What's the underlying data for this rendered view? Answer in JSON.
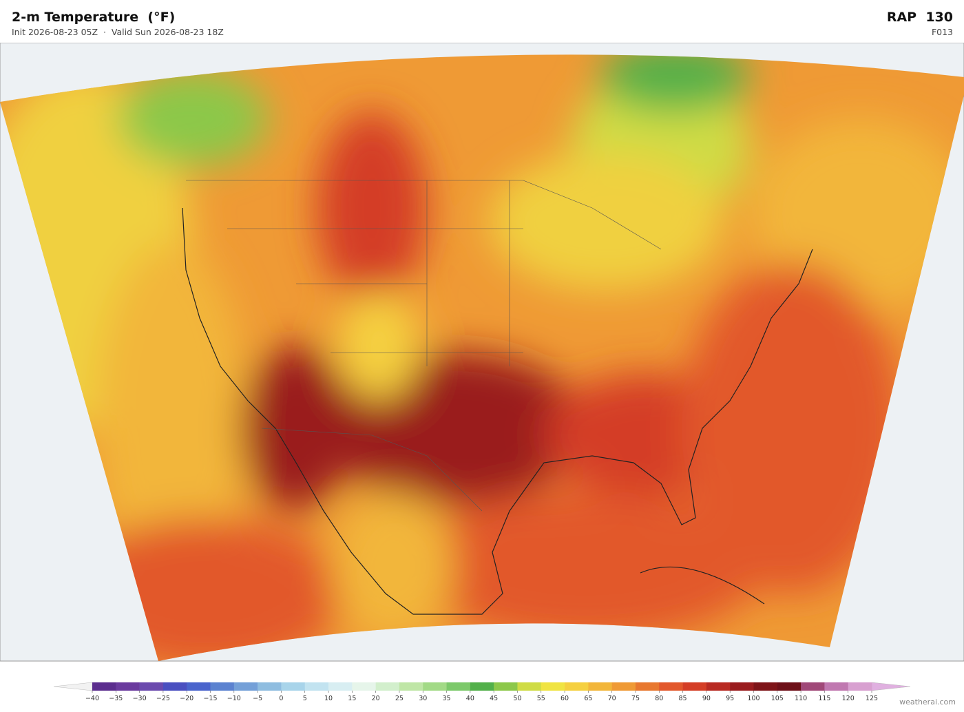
{
  "header": {
    "title": "2-m Temperature  (°F)",
    "subtitle": "Init 2026-08-23 05Z  ·  Valid Sun 2026-08-23 18Z",
    "model": "RAP  130",
    "forecast_hour": "F013"
  },
  "colorbar": {
    "ticks": [
      {
        "value": -40,
        "label": "−40"
      },
      {
        "value": -35,
        "label": "−35"
      },
      {
        "value": -30,
        "label": "−30"
      },
      {
        "value": -25,
        "label": "−25"
      },
      {
        "value": -20,
        "label": "−20"
      },
      {
        "value": -15,
        "label": "−15"
      },
      {
        "value": -10,
        "label": "−10"
      },
      {
        "value": -5,
        "label": "−5"
      },
      0,
      5,
      10,
      15,
      20,
      25,
      30,
      35,
      40,
      45,
      50,
      55,
      60,
      65,
      70,
      75,
      80,
      85,
      90,
      95,
      100,
      105,
      110,
      115,
      120,
      125
    ],
    "colors": [
      "#5b2d8e",
      "#6a3a9e",
      "#6b4aae",
      "#4a4fc0",
      "#4a64cc",
      "#5b82d0",
      "#74a0d8",
      "#8fbde0",
      "#a8d4ea",
      "#c2e3f0",
      "#d8eef2",
      "#e6f5ea",
      "#d2efcc",
      "#bfe6a6",
      "#a2da86",
      "#7cc96a",
      "#52b04a",
      "#8cc84a",
      "#cfdc45",
      "#f0e442",
      "#f5d040",
      "#f2b63a",
      "#ef9a35",
      "#e8782f",
      "#e2582c",
      "#d43e26",
      "#b82a22",
      "#9a1c1e",
      "#7e1418",
      "#6e1018",
      "#a04878",
      "#c078b0",
      "#d8a0d0"
    ],
    "under_color": "#f2f2f2",
    "over_color": "#e0b0e0"
  },
  "watermark": "weatherai.com"
}
